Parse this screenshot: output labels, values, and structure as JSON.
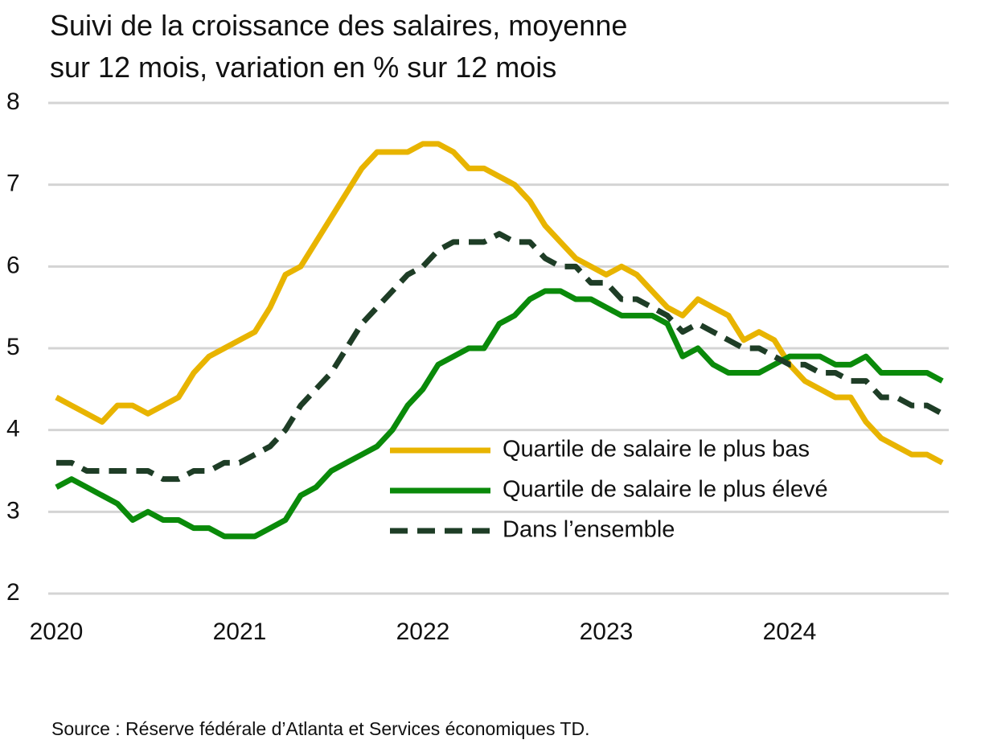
{
  "chart_data": {
    "type": "line",
    "title": [
      "Suivi de la croissance des salaires, moyenne",
      "sur 12 mois, variation en % sur 12 mois"
    ],
    "source": "Source : Réserve fédérale d’Atlanta et Services économiques TD.",
    "categories": [
      "2020",
      null,
      null,
      null,
      null,
      null,
      null,
      null,
      null,
      null,
      null,
      null,
      "2021",
      null,
      null,
      null,
      null,
      null,
      null,
      null,
      null,
      null,
      null,
      null,
      "2022",
      null,
      null,
      null,
      null,
      null,
      null,
      null,
      null,
      null,
      null,
      null,
      "2023",
      null,
      null,
      null,
      null,
      null,
      null,
      null,
      null,
      null,
      null,
      null,
      "2024",
      null,
      null,
      null,
      null,
      null,
      null,
      null,
      null,
      null,
      null
    ],
    "series": [
      {
        "name": "Quartile de salaire le plus bas",
        "color": "#e8b400",
        "dashed": false,
        "values": [
          4.4,
          4.3,
          4.2,
          4.1,
          4.3,
          4.3,
          4.2,
          4.3,
          4.4,
          4.7,
          4.9,
          5.0,
          5.1,
          5.2,
          5.5,
          5.9,
          6.0,
          6.3,
          6.6,
          6.9,
          7.2,
          7.4,
          7.4,
          7.4,
          7.5,
          7.5,
          7.4,
          7.2,
          7.2,
          7.1,
          7.0,
          6.8,
          6.5,
          6.3,
          6.1,
          6.0,
          5.9,
          6.0,
          5.9,
          5.7,
          5.5,
          5.4,
          5.6,
          5.5,
          5.4,
          5.1,
          5.2,
          5.1,
          4.8,
          4.6,
          4.5,
          4.4,
          4.4,
          4.1,
          3.9,
          3.8,
          3.7,
          3.7,
          3.6
        ]
      },
      {
        "name": "Quartile de salaire le plus élevé",
        "color": "#0a8a0a",
        "dashed": false,
        "values": [
          3.3,
          3.4,
          3.3,
          3.2,
          3.1,
          2.9,
          3.0,
          2.9,
          2.9,
          2.8,
          2.8,
          2.7,
          2.7,
          2.7,
          2.8,
          2.9,
          3.2,
          3.3,
          3.5,
          3.6,
          3.7,
          3.8,
          4.0,
          4.3,
          4.5,
          4.8,
          4.9,
          5.0,
          5.0,
          5.3,
          5.4,
          5.6,
          5.7,
          5.7,
          5.6,
          5.6,
          5.5,
          5.4,
          5.4,
          5.4,
          5.3,
          4.9,
          5.0,
          4.8,
          4.7,
          4.7,
          4.7,
          4.8,
          4.9,
          4.9,
          4.9,
          4.8,
          4.8,
          4.9,
          4.7,
          4.7,
          4.7,
          4.7,
          4.6
        ]
      },
      {
        "name": "Dans l’ensemble",
        "color": "#1e3d26",
        "dashed": true,
        "values": [
          3.6,
          3.6,
          3.5,
          3.5,
          3.5,
          3.5,
          3.5,
          3.4,
          3.4,
          3.5,
          3.5,
          3.6,
          3.6,
          3.7,
          3.8,
          4.0,
          4.3,
          4.5,
          4.7,
          5.0,
          5.3,
          5.5,
          5.7,
          5.9,
          6.0,
          6.2,
          6.3,
          6.3,
          6.3,
          6.4,
          6.3,
          6.3,
          6.1,
          6.0,
          6.0,
          5.8,
          5.8,
          5.6,
          5.6,
          5.5,
          5.4,
          5.2,
          5.3,
          5.2,
          5.1,
          5.0,
          5.0,
          4.9,
          4.8,
          4.8,
          4.7,
          4.7,
          4.6,
          4.6,
          4.4,
          4.4,
          4.3,
          4.3,
          4.2
        ]
      }
    ],
    "ylim": [
      2,
      8
    ],
    "yticks": [
      2,
      3,
      4,
      5,
      6,
      7,
      8
    ],
    "grid": true,
    "legend_position": "right"
  }
}
